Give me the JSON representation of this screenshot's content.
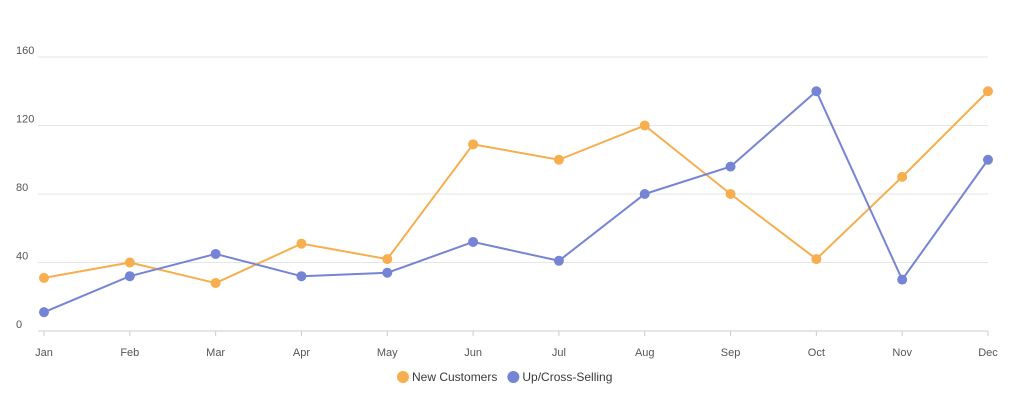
{
  "chart_data": {
    "type": "line",
    "categories": [
      "Jan",
      "Feb",
      "Mar",
      "Apr",
      "May",
      "Jun",
      "Jul",
      "Aug",
      "Sep",
      "Oct",
      "Nov",
      "Dec"
    ],
    "series": [
      {
        "name": "New Customers",
        "color": "#f7ae4e",
        "values": [
          31,
          40,
          28,
          51,
          42,
          109,
          100,
          120,
          80,
          42,
          90,
          140
        ]
      },
      {
        "name": "Up/Cross-Selling",
        "color": "#7584d4",
        "values": [
          11,
          32,
          45,
          32,
          34,
          52,
          41,
          80,
          96,
          140,
          30,
          100
        ]
      }
    ],
    "yticks": [
      0,
      40,
      80,
      120,
      160
    ],
    "ylim": [
      0,
      160
    ],
    "grid": true,
    "legend_position": "bottom-center"
  }
}
